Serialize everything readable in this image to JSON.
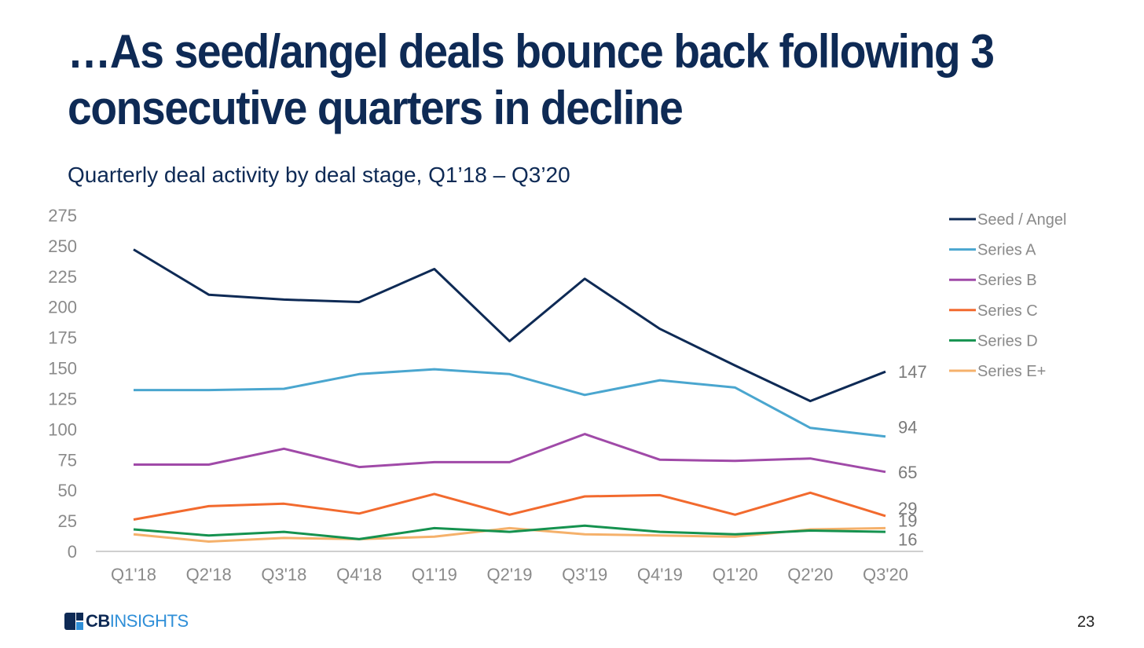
{
  "title": "…As seed/angel deals bounce back following 3 consecutive quarters in decline",
  "subtitle": "Quarterly deal activity by deal stage, Q1’18 – Q3’20",
  "footer": {
    "logo_cb": "CB",
    "logo_rest": "INSIGHTS",
    "page_number": "23"
  },
  "chart_data": {
    "type": "line",
    "categories": [
      "Q1'18",
      "Q2'18",
      "Q3'18",
      "Q4'18",
      "Q1'19",
      "Q2'19",
      "Q3'19",
      "Q4'19",
      "Q1'20",
      "Q2'20",
      "Q3'20"
    ],
    "ylim": [
      0,
      275
    ],
    "yticks": [
      0,
      25,
      50,
      75,
      100,
      125,
      150,
      175,
      200,
      225,
      250,
      275
    ],
    "grid": false,
    "legend_position": "right",
    "series": [
      {
        "name": "Seed / Angel",
        "color": "#0e2a55",
        "values": [
          247,
          210,
          206,
          204,
          231,
          172,
          223,
          182,
          152,
          123,
          147
        ],
        "end_label": "147"
      },
      {
        "name": "Series A",
        "color": "#4aa6cf",
        "values": [
          132,
          132,
          133,
          145,
          149,
          145,
          128,
          140,
          134,
          101,
          94
        ],
        "end_label": "94"
      },
      {
        "name": "Series B",
        "color": "#a04aa8",
        "values": [
          71,
          71,
          84,
          69,
          73,
          73,
          96,
          75,
          74,
          76,
          65
        ],
        "end_label": "65"
      },
      {
        "name": "Series C",
        "color": "#f26a2e",
        "values": [
          26,
          37,
          39,
          31,
          47,
          30,
          45,
          46,
          30,
          48,
          29
        ],
        "end_label": "29"
      },
      {
        "name": "Series D",
        "color": "#15924f",
        "values": [
          18,
          13,
          16,
          10,
          19,
          16,
          21,
          16,
          14,
          17,
          16
        ],
        "end_label": "16"
      },
      {
        "name": "Series E+",
        "color": "#f5b16b",
        "values": [
          14,
          8,
          11,
          10,
          12,
          19,
          14,
          13,
          12,
          18,
          19
        ],
        "end_label": "19"
      }
    ]
  }
}
